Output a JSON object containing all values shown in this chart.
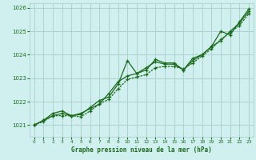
{
  "title": "Graphe pression niveau de la mer (hPa)",
  "background_color": "#d0f0f0",
  "grid_color": "#aacccc",
  "line_color": "#1a6b1a",
  "xlim": [
    -0.5,
    23.5
  ],
  "ylim": [
    1020.5,
    1026.2
  ],
  "xticks": [
    0,
    1,
    2,
    3,
    4,
    5,
    6,
    7,
    8,
    9,
    10,
    11,
    12,
    13,
    14,
    15,
    16,
    17,
    18,
    19,
    20,
    21,
    22,
    23
  ],
  "yticks": [
    1021,
    1022,
    1023,
    1024,
    1025,
    1026
  ],
  "series1_x": [
    0,
    1,
    2,
    3,
    4,
    5,
    6,
    7,
    8,
    9,
    10,
    11,
    12,
    13,
    14,
    15,
    16,
    17,
    18,
    19,
    20,
    21,
    22,
    23
  ],
  "series1_y": [
    1021.0,
    1021.2,
    1021.5,
    1021.6,
    1021.4,
    1021.45,
    1021.75,
    1022.05,
    1022.2,
    1022.75,
    1023.75,
    1023.2,
    1023.35,
    1023.8,
    1023.65,
    1023.65,
    1023.35,
    1023.75,
    1024.0,
    1024.35,
    1025.0,
    1024.85,
    1025.4,
    1025.95
  ],
  "series2_x": [
    0,
    1,
    2,
    3,
    4,
    5,
    6,
    7,
    8,
    9,
    10,
    11,
    12,
    13,
    14,
    15,
    16,
    17,
    18,
    19,
    20,
    21,
    22,
    23
  ],
  "series2_y": [
    1021.0,
    1021.2,
    1021.4,
    1021.5,
    1021.4,
    1021.5,
    1021.7,
    1021.9,
    1022.35,
    1022.85,
    1023.1,
    1023.2,
    1023.45,
    1023.7,
    1023.6,
    1023.6,
    1023.35,
    1023.85,
    1024.0,
    1024.35,
    1024.6,
    1025.0,
    1025.35,
    1025.85
  ],
  "series3_x": [
    0,
    1,
    2,
    3,
    4,
    5,
    6,
    7,
    8,
    9,
    10,
    11,
    12,
    13,
    14,
    15,
    16,
    17,
    18,
    19,
    20,
    21,
    22,
    23
  ],
  "series3_y": [
    1021.0,
    1021.15,
    1021.4,
    1021.4,
    1021.4,
    1021.35,
    1021.6,
    1021.9,
    1022.1,
    1022.55,
    1022.95,
    1023.05,
    1023.15,
    1023.45,
    1023.5,
    1023.5,
    1023.4,
    1023.65,
    1023.95,
    1024.25,
    1024.65,
    1024.95,
    1025.25,
    1025.75
  ]
}
